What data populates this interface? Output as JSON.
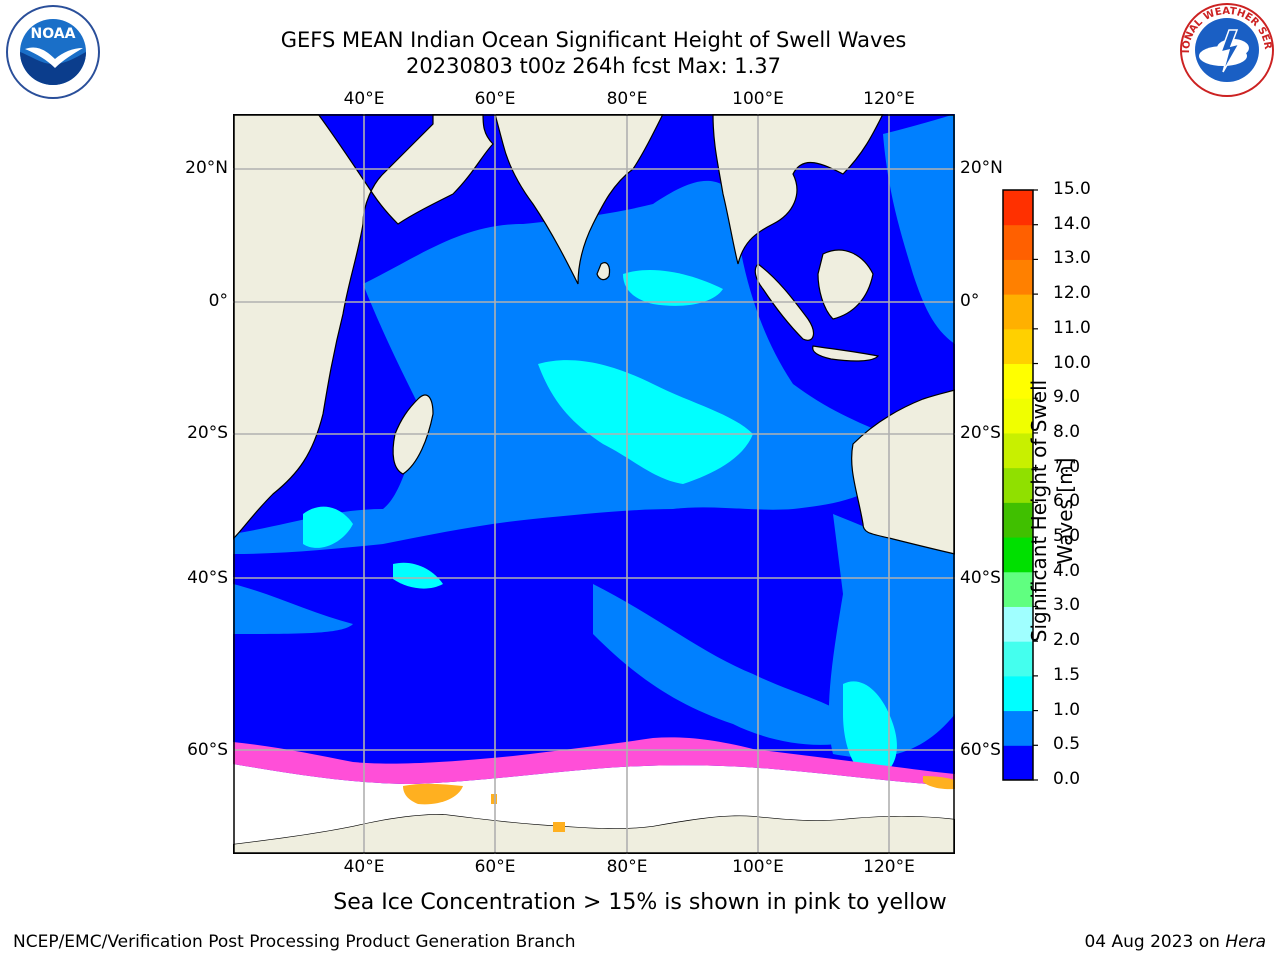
{
  "header": {
    "title_line1": "GEFS MEAN Indian Ocean Significant Height of Swell Waves",
    "title_line2": "20230803 t00z 264h fcst   Max: 1.37"
  },
  "logos": {
    "left": {
      "name": "noaa-logo",
      "text": "NOAA"
    },
    "right": {
      "name": "national-weather-service-logo",
      "text": "NATIONAL WEATHER SERVICE"
    }
  },
  "map": {
    "lon_labels": [
      "40°E",
      "60°E",
      "80°E",
      "100°E",
      "120°E"
    ],
    "lat_labels": [
      "20°N",
      "0°",
      "20°S",
      "40°S",
      "60°S"
    ],
    "colors": {
      "land": "#efeedf",
      "deep_blue": "#0000ff",
      "mid_blue": "#0080ff",
      "cyan": "#00ffff",
      "ice_pink": "#ff4fd8",
      "ice_orange": "#ffb020",
      "grid": "#b0b0b0"
    }
  },
  "colorbar": {
    "title": "Significant Height of Swell Waves [m]",
    "ticks": [
      "15.0",
      "14.0",
      "13.0",
      "12.0",
      "11.0",
      "10.0",
      "9.0",
      "8.0",
      "7.0",
      "6.0",
      "5.0",
      "4.0",
      "3.0",
      "2.0",
      "1.5",
      "1.0",
      "0.5",
      "0.0"
    ],
    "colors": [
      "#0000ff",
      "#0080ff",
      "#00ffff",
      "#44ffee",
      "#a0ffff",
      "#60ff80",
      "#00e000",
      "#40c000",
      "#90e000",
      "#c8f000",
      "#f0ff00",
      "#ffff00",
      "#ffd000",
      "#ffb000",
      "#ff8000",
      "#ff6000",
      "#ff3000"
    ]
  },
  "caption": "Sea Ice Concentration > 15% is shown in pink to yellow",
  "footer": {
    "left": "NCEP/EMC/Verification Post Processing Product Generation Branch",
    "right_prefix": "04 Aug 2023 on ",
    "right_machine": "Hera"
  }
}
